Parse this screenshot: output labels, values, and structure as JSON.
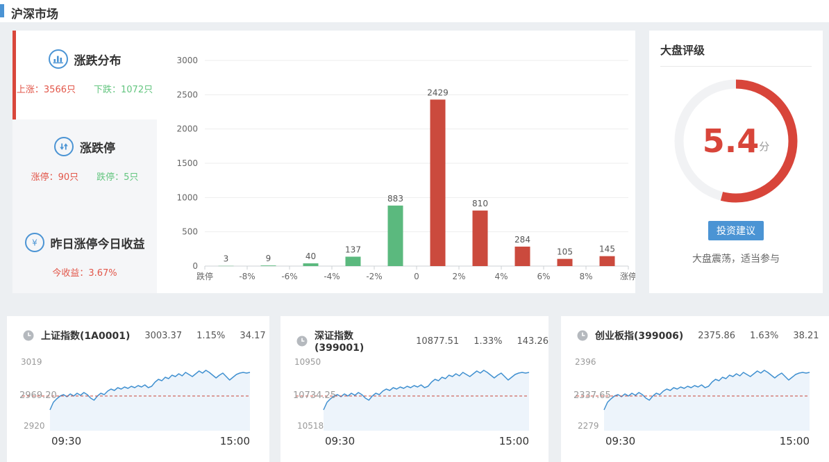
{
  "header": {
    "title": "沪深市场"
  },
  "colors": {
    "accent_blue": "#4b94d4",
    "text_red": "#e25649",
    "text_green": "#63c57f",
    "bar_red": "#cb4a3d",
    "bar_green": "#5bb97e",
    "gauge_red": "#d8453a",
    "gauge_track": "#f1f2f4",
    "line_blue": "#4090d0",
    "area_blue": "#edf4fb",
    "dash_red": "#c8453a"
  },
  "left_panel": {
    "distribution": {
      "title": "涨跌分布",
      "up": "上涨：3566只",
      "down": "下跌：1072只"
    },
    "limits": {
      "title": "涨跌停",
      "up": "涨停：90只",
      "down": "跌停：5只"
    },
    "yesterday": {
      "title": "昨日涨停今日收益",
      "profit": "今收益：3.67%"
    }
  },
  "rating": {
    "title": "大盘评级",
    "score": "5.4",
    "score_unit": "分",
    "score_value": 5.4,
    "score_max": 10,
    "button_label": "投资建议",
    "advice": "大盘震荡，适当参与"
  },
  "chart_data": [
    {
      "type": "bar",
      "title": "涨跌分布",
      "boundary_labels": [
        "跌停",
        "-8%",
        "-6%",
        "-4%",
        "-2%",
        "0",
        "2%",
        "4%",
        "6%",
        "8%",
        "涨停"
      ],
      "values": [
        3,
        9,
        40,
        137,
        883,
        2429,
        810,
        284,
        105,
        145
      ],
      "bar_colors": [
        "green",
        "green",
        "green",
        "green",
        "green",
        "red",
        "red",
        "red",
        "red",
        "red"
      ],
      "ylim": [
        0,
        3000
      ],
      "ytick_step": 500,
      "grid": true
    },
    {
      "type": "line",
      "name": "上证指数(1A0001)",
      "price": "3003.37",
      "change_pct": "1.15%",
      "change_amt": "34.17",
      "ymin": 2920,
      "ymax": 3019,
      "prev_close": 2969.2,
      "ymax_label": "3019",
      "ymid_label": "2969.20",
      "ymin_label": "2920",
      "x_labels": [
        "09:30",
        "15:00"
      ]
    },
    {
      "type": "line",
      "name": "深证指数(399001)",
      "price": "10877.51",
      "change_pct": "1.33%",
      "change_amt": "143.26",
      "ymin": 10518,
      "ymax": 10950,
      "prev_close": 10734.25,
      "ymax_label": "10950",
      "ymid_label": "10734.25",
      "ymin_label": "10518",
      "x_labels": [
        "09:30",
        "15:00"
      ]
    },
    {
      "type": "line",
      "name": "创业板指(399006)",
      "price": "2375.86",
      "change_pct": "1.63%",
      "change_amt": "38.21",
      "ymin": 2279,
      "ymax": 2396,
      "prev_close": 2337.65,
      "ymax_label": "2396",
      "ymid_label": "2337.65",
      "ymin_label": "2279",
      "x_labels": [
        "09:30",
        "15:00"
      ]
    }
  ],
  "intraday_shape": [
    0.3,
    0.41,
    0.46,
    0.5,
    0.52,
    0.49,
    0.53,
    0.5,
    0.54,
    0.51,
    0.55,
    0.52,
    0.47,
    0.44,
    0.5,
    0.54,
    0.52,
    0.57,
    0.6,
    0.58,
    0.62,
    0.6,
    0.63,
    0.61,
    0.64,
    0.62,
    0.65,
    0.63,
    0.66,
    0.62,
    0.64,
    0.7,
    0.74,
    0.72,
    0.77,
    0.75,
    0.8,
    0.78,
    0.82,
    0.79,
    0.84,
    0.81,
    0.78,
    0.82,
    0.86,
    0.83,
    0.87,
    0.84,
    0.8,
    0.76,
    0.8,
    0.83,
    0.78,
    0.73,
    0.77,
    0.81,
    0.83,
    0.84,
    0.83,
    0.84
  ]
}
